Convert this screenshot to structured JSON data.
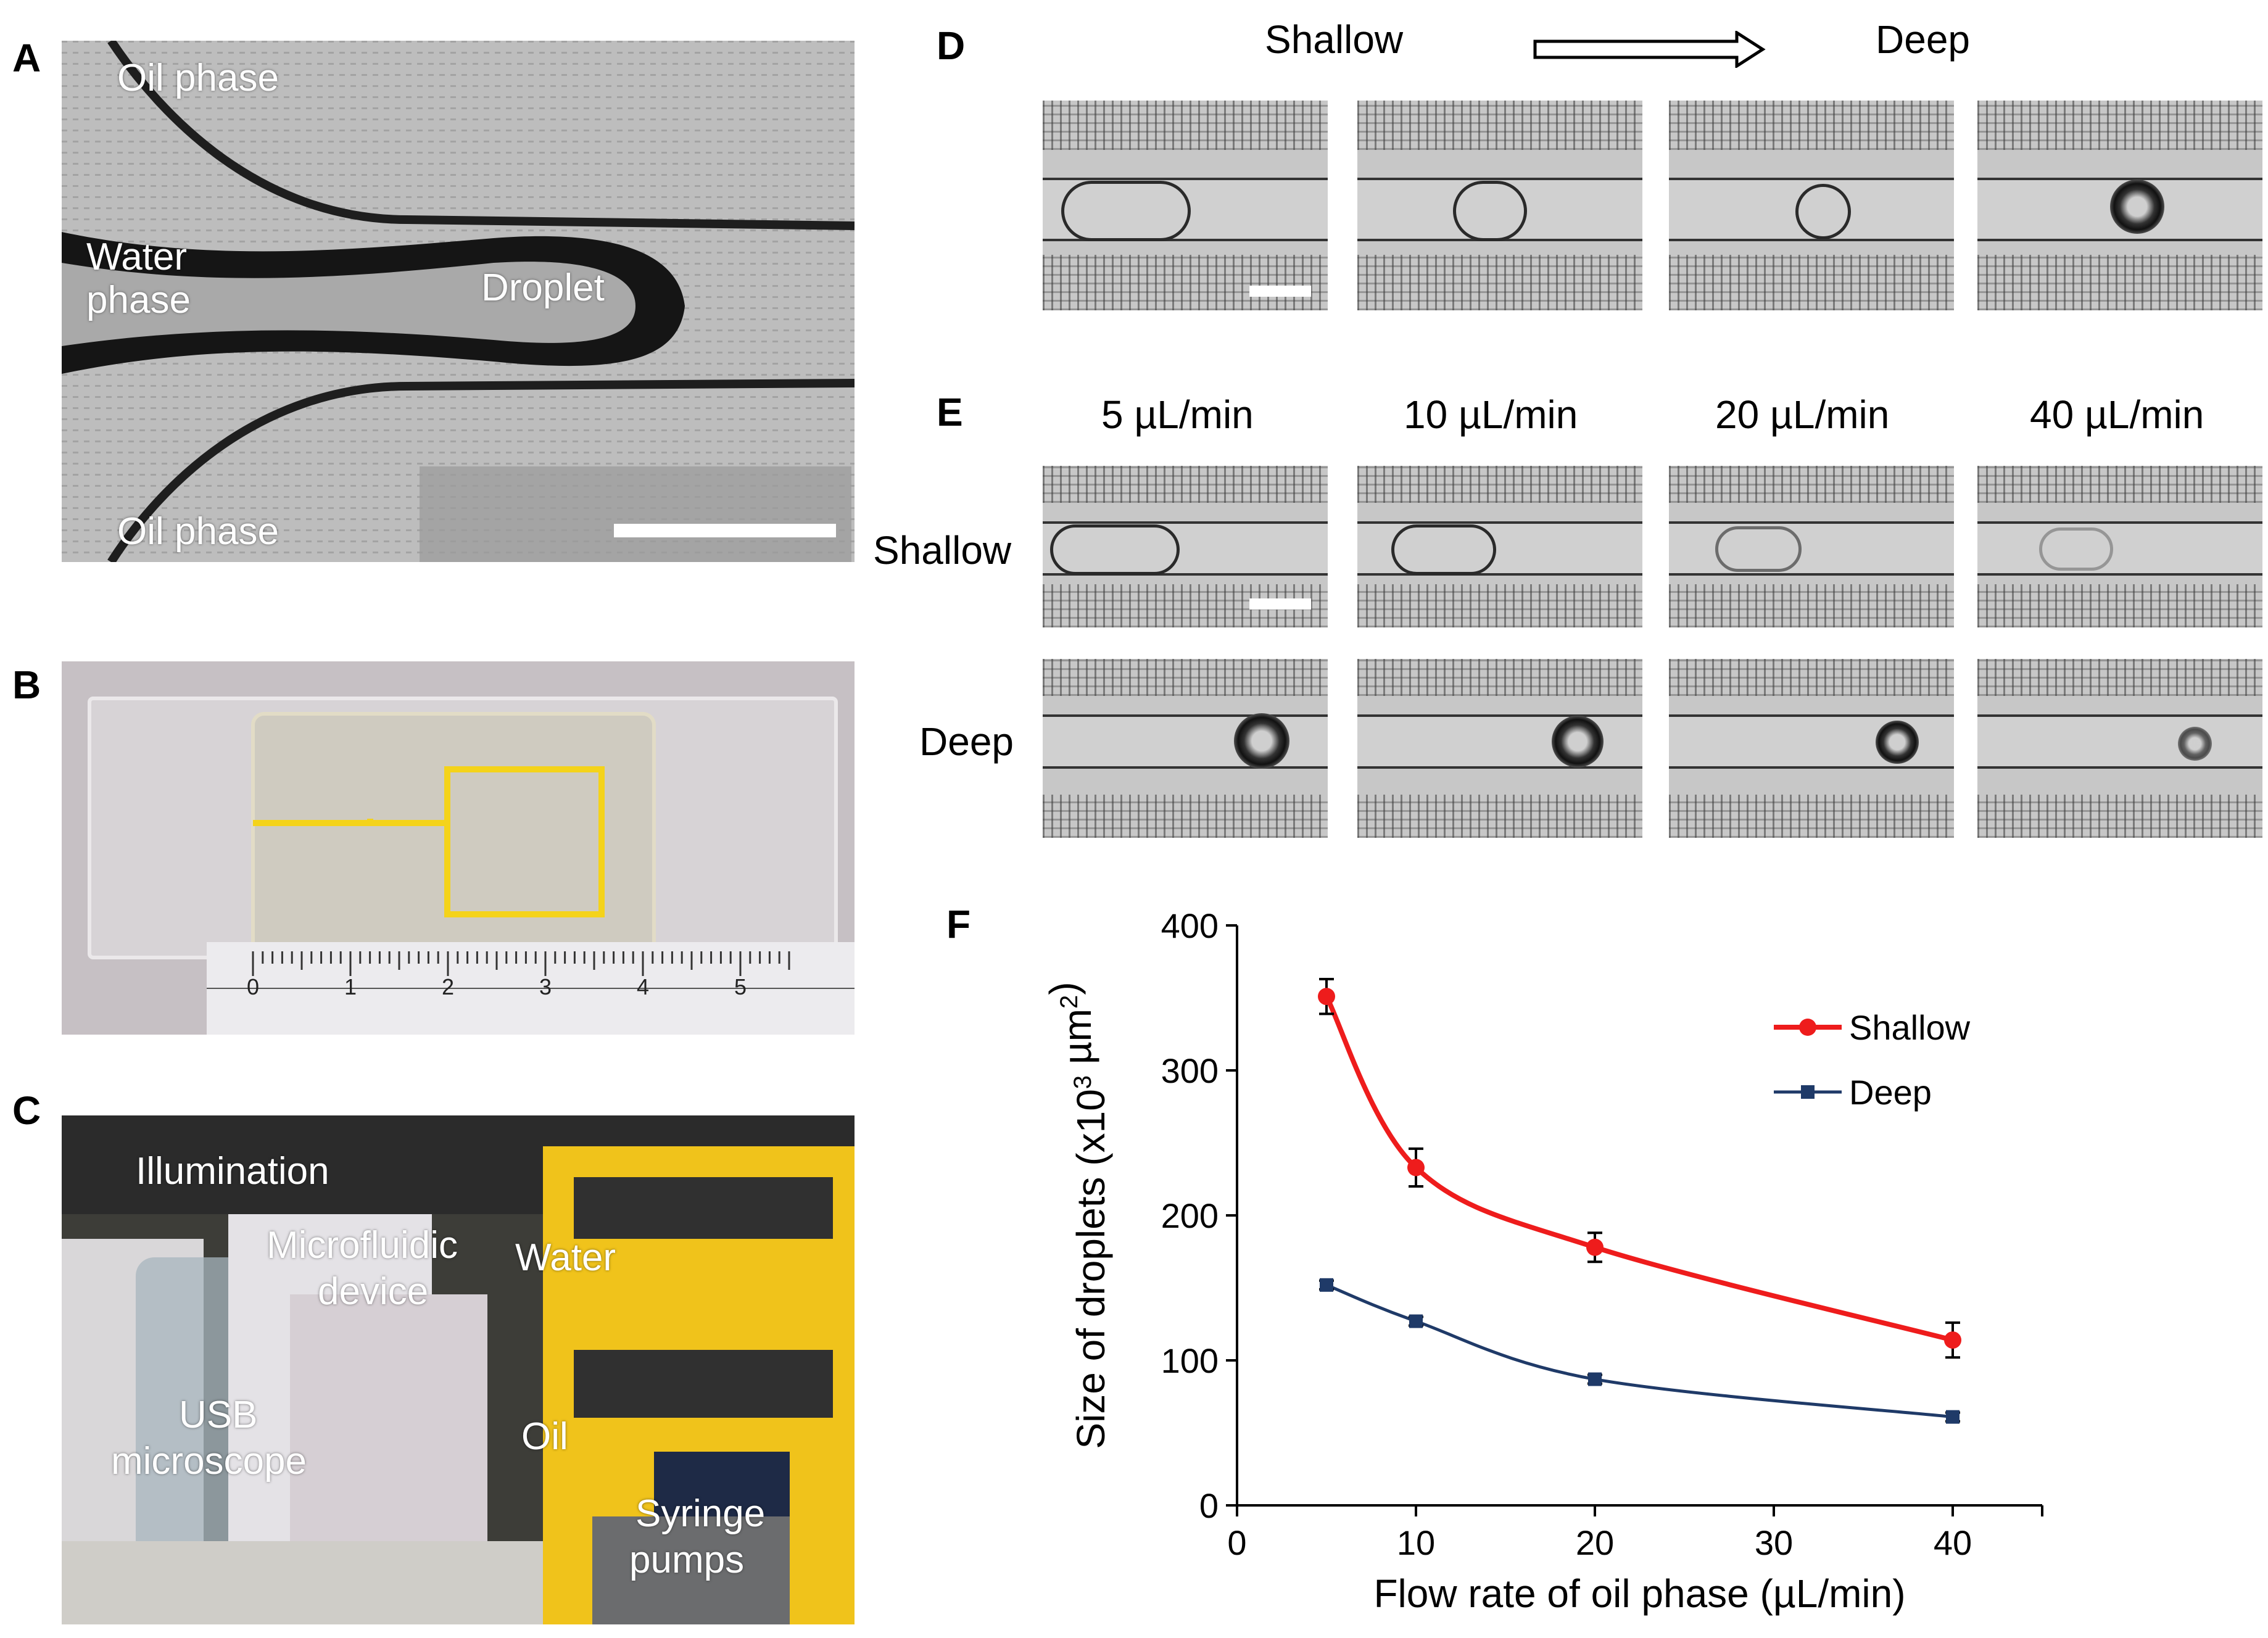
{
  "panels": {
    "a": {
      "label": "A",
      "oil_top": "Oil phase",
      "oil_bottom": "Oil phase",
      "water": "Water",
      "water2": "phase",
      "droplet": "Droplet"
    },
    "b": {
      "label": "B",
      "ruler_ticks": [
        "0",
        "1",
        "2",
        "3",
        "4",
        "5"
      ]
    },
    "c": {
      "label": "C",
      "illumination": "Illumination",
      "microfluidic": "Microfluidic",
      "device": "device",
      "water": "Water",
      "usb": "USB",
      "microscope": "microscope",
      "oil": "Oil",
      "syringe": "Syringe",
      "pumps": "pumps"
    },
    "d": {
      "label": "D",
      "from": "Shallow",
      "to": "Deep"
    },
    "e": {
      "label": "E",
      "rates": [
        "5 µL/min",
        "10 µL/min",
        "20 µL/min",
        "40 µL/min"
      ],
      "row_shallow": "Shallow",
      "row_deep": "Deep"
    },
    "f": {
      "label": "F"
    }
  },
  "chart_data": {
    "type": "line",
    "xlabel": "Flow rate of oil phase (µL/min)",
    "ylabel_main": "Size of droplets (x10",
    "ylabel_sup": "3",
    "ylabel_unit": " µm",
    "ylabel_sup2": "2",
    "ylabel_close": ")",
    "xlim": [
      0,
      45
    ],
    "ylim": [
      0,
      400
    ],
    "xticks": [
      0,
      10,
      20,
      30,
      40
    ],
    "yticks": [
      0,
      100,
      200,
      300,
      400
    ],
    "legend_position": "top-right",
    "series": [
      {
        "name": "Shallow",
        "color": "#ee1c1c",
        "x": [
          5,
          10,
          20,
          40
        ],
        "y": [
          351,
          233,
          178,
          114
        ],
        "err": [
          12,
          13,
          10,
          12
        ]
      },
      {
        "name": "Deep",
        "color": "#1f3a68",
        "x": [
          5,
          10,
          20,
          40
        ],
        "y": [
          152,
          127,
          87,
          61
        ],
        "err": [
          3,
          3,
          3,
          3
        ]
      }
    ]
  }
}
